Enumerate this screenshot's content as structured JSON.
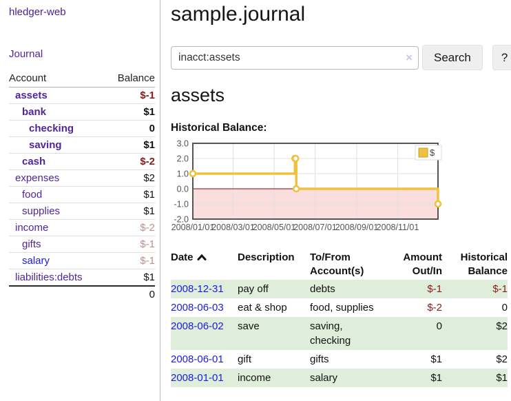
{
  "colors": {
    "link_purple": "#52249b",
    "link_blue": "#1a1ae0",
    "negative_strong": "#8b1a1a",
    "negative_soft": "#bc8f8f",
    "series_gold": "#edc240",
    "series_gold_border": "#c9a227",
    "negative_region_pink": "#fadddd",
    "zero_line_red": "#8b0000",
    "row_stripe_green": "#dfeeda",
    "grid_gray": "#e0e0e0",
    "chart_border": "#555555"
  },
  "sidebar": {
    "brand": "hledger-web",
    "journal_link": "Journal",
    "accounts_header": {
      "account": "Account",
      "balance": "Balance"
    },
    "accounts": [
      {
        "label": "assets",
        "indent": 1,
        "bold": true,
        "color": "purple",
        "balance": "$-1",
        "balance_color": "negstrong",
        "balance_bold": true
      },
      {
        "label": "bank",
        "indent": 2,
        "bold": true,
        "color": "purple",
        "balance": "$1",
        "balance_color": "black",
        "balance_bold": true
      },
      {
        "label": "checking",
        "indent": 3,
        "bold": true,
        "color": "purple",
        "balance": "0",
        "balance_color": "black",
        "balance_bold": true
      },
      {
        "label": "saving",
        "indent": 3,
        "bold": true,
        "color": "purple",
        "balance": "$1",
        "balance_color": "black",
        "balance_bold": true
      },
      {
        "label": "cash",
        "indent": 2,
        "bold": true,
        "color": "purple",
        "balance": "$-2",
        "balance_color": "negstrong",
        "balance_bold": true
      },
      {
        "label": "expenses",
        "indent": 1,
        "bold": false,
        "color": "purple",
        "balance": "$2",
        "balance_color": "black",
        "balance_bold": false
      },
      {
        "label": "food",
        "indent": 2,
        "bold": false,
        "color": "purple",
        "balance": "$1",
        "balance_color": "black",
        "balance_bold": false
      },
      {
        "label": "supplies",
        "indent": 2,
        "bold": false,
        "color": "purple",
        "balance": "$1",
        "balance_color": "black",
        "balance_bold": false
      },
      {
        "label": "income",
        "indent": 1,
        "bold": false,
        "color": "purple",
        "balance": "$-2",
        "balance_color": "negsoft",
        "balance_bold": false
      },
      {
        "label": "gifts",
        "indent": 2,
        "bold": false,
        "color": "purple",
        "balance": "$-1",
        "balance_color": "negsoft",
        "balance_bold": false
      },
      {
        "label": "salary",
        "indent": 2,
        "bold": false,
        "color": "blue",
        "balance": "$-1",
        "balance_color": "negsoft",
        "balance_bold": false
      },
      {
        "label": "liabilities:debts",
        "indent": 1,
        "bold": false,
        "color": "purple",
        "balance": "$1",
        "balance_color": "black",
        "balance_bold": false
      }
    ],
    "total": "0"
  },
  "main": {
    "title": "sample.journal",
    "search": {
      "value": "inacct:assets",
      "clear_icon": "×",
      "button_label": "Search",
      "help_label": "?"
    },
    "account_heading": "assets",
    "chart_label": "Historical Balance:"
  },
  "chart_data": {
    "type": "line",
    "step": true,
    "title": "Historical Balance",
    "series": [
      {
        "name": "$",
        "color": "#edc240",
        "points": [
          [
            "2008-01-01",
            1
          ],
          [
            "2008-06-01",
            2
          ],
          [
            "2008-06-02",
            2
          ],
          [
            "2008-06-03",
            0
          ],
          [
            "2008-12-31",
            -1
          ]
        ]
      }
    ],
    "x_range": [
      "2008-01-01",
      "2008-12-31"
    ],
    "ylim": [
      -2,
      3
    ],
    "y_ticks": [
      "3.0",
      "2.0",
      "1.0",
      "0.0",
      "-1.0",
      "-2.0"
    ],
    "x_ticks": [
      "2008/01/01",
      "2008/03/01",
      "2008/05/01",
      "2008/07/01",
      "2008/09/01",
      "2008/11/01"
    ],
    "legend": {
      "label": "$",
      "position": "top-right"
    },
    "grid": true,
    "negative_region_shaded": true
  },
  "register": {
    "headers": [
      "Date",
      "Description",
      "To/From Account(s)",
      "Amount Out/In",
      "Historical Balance"
    ],
    "rows": [
      {
        "date": "2008-12-31",
        "description": "pay off",
        "accounts": "debts",
        "amount": "$-1",
        "balance": "$-1",
        "amount_neg": true,
        "balance_neg": true,
        "striped": true
      },
      {
        "date": "2008-06-03",
        "description": "eat & shop",
        "accounts": "food, supplies",
        "amount": "$-2",
        "balance": "0",
        "amount_neg": true,
        "balance_neg": false,
        "striped": false
      },
      {
        "date": "2008-06-02",
        "description": "save",
        "accounts": "saving, checking",
        "amount": "0",
        "balance": "$2",
        "amount_neg": false,
        "balance_neg": false,
        "striped": true
      },
      {
        "date": "2008-06-01",
        "description": "gift",
        "accounts": "gifts",
        "amount": "$1",
        "balance": "$2",
        "amount_neg": false,
        "balance_neg": false,
        "striped": false
      },
      {
        "date": "2008-01-01",
        "description": "income",
        "accounts": "salary",
        "amount": "$1",
        "balance": "$1",
        "amount_neg": false,
        "balance_neg": false,
        "striped": true
      }
    ]
  }
}
